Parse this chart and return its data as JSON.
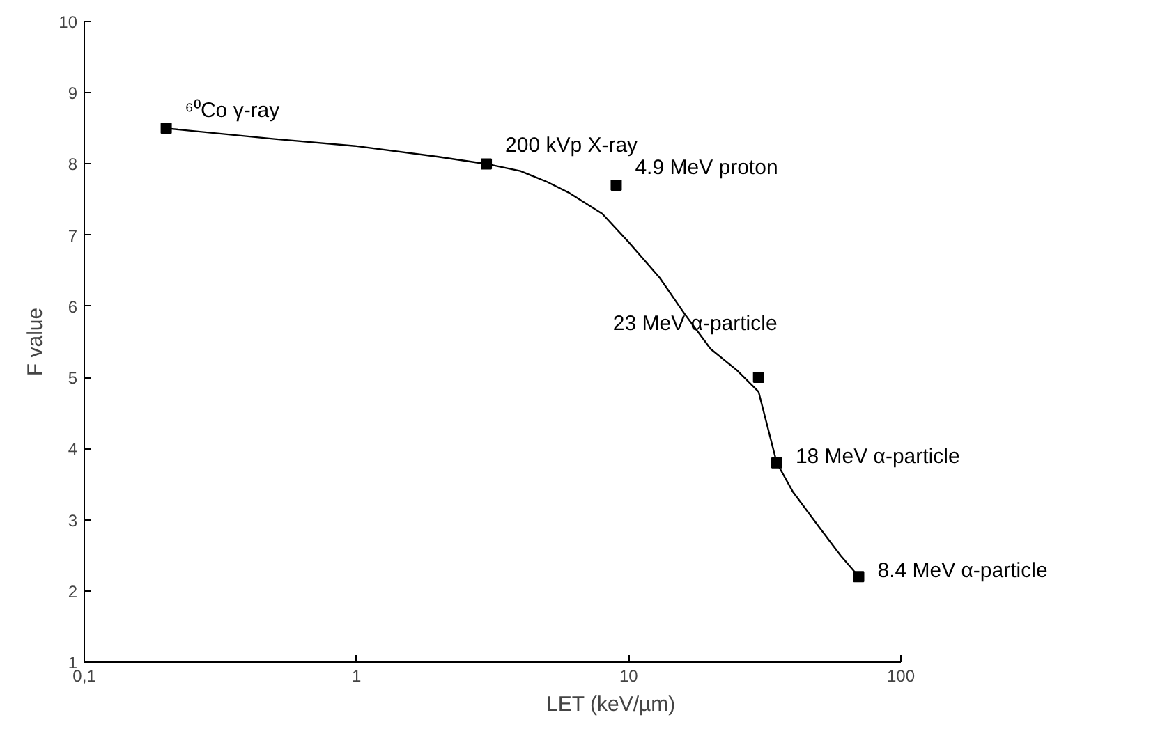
{
  "chart_data": {
    "type": "scatter",
    "xlabel": "LET (keV/µm)",
    "ylabel": "F value",
    "log": "x",
    "grid": false,
    "marker": "square",
    "xlim": [
      0.1,
      100
    ],
    "xticks": [
      {
        "value": 0.1,
        "label": "0,1"
      },
      1,
      10,
      100
    ],
    "ylim": [
      1,
      10
    ],
    "yticks": [
      1,
      2,
      3,
      4,
      5,
      6,
      7,
      8,
      9,
      10
    ],
    "series": [
      {
        "color": "#000000",
        "x": [
          0.2,
          3,
          9,
          30,
          35,
          70
        ],
        "values": [
          8.5,
          8.0,
          7.7,
          5.0,
          3.8,
          2.2
        ]
      },
      {
        "type": "line",
        "color": "#000000",
        "marker": "none",
        "line_style": "solid",
        "x": [
          0.2,
          0.5,
          1,
          2,
          3,
          4,
          5,
          6,
          8,
          10,
          13,
          16,
          20,
          25,
          30,
          35,
          40,
          50,
          60,
          70
        ],
        "values": [
          8.5,
          8.35,
          8.25,
          8.1,
          8.0,
          7.9,
          7.75,
          7.6,
          7.3,
          6.9,
          6.4,
          5.9,
          5.4,
          5.1,
          4.8,
          3.8,
          3.4,
          2.9,
          2.5,
          2.2
        ]
      }
    ],
    "annotations": [
      {
        "text": "⁶⁰Co γ-ray",
        "x": 0.2,
        "y": 8.5
      },
      {
        "text": "200 kVp X-ray",
        "x": 3,
        "y": 8.0
      },
      {
        "text": "4.9 MeV proton",
        "x": 9,
        "y": 7.7
      },
      {
        "text": "23 MeV α-particle",
        "x": 30,
        "y": 5.0
      },
      {
        "text": "18 MeV α-particle",
        "x": 35,
        "y": 3.8
      },
      {
        "text": "8.4 MeV α-particle",
        "x": 70,
        "y": 2.2
      }
    ]
  }
}
